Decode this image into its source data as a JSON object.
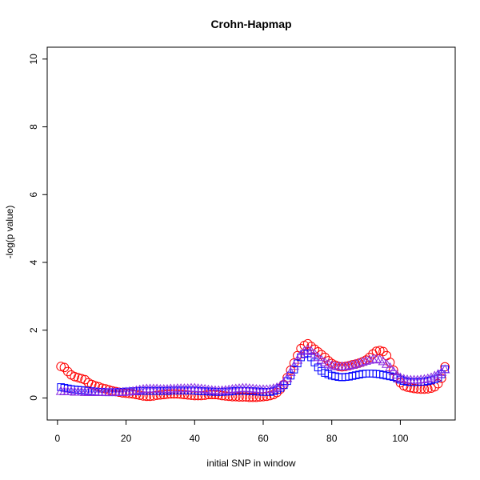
{
  "chart_data": {
    "type": "scatter",
    "title": "Crohn-Hapmap",
    "xlabel": "initial SNP in window",
    "ylabel": "-log(p value)",
    "xlim": [
      -3,
      116
    ],
    "ylim": [
      -0.65,
      10.35
    ],
    "x_ticks": [
      0,
      20,
      40,
      60,
      80,
      100
    ],
    "y_ticks": [
      0,
      2,
      4,
      6,
      8,
      10
    ],
    "grid": false,
    "x": [
      1,
      2,
      3,
      4,
      5,
      6,
      7,
      8,
      9,
      10,
      11,
      12,
      13,
      14,
      15,
      16,
      17,
      18,
      19,
      20,
      21,
      22,
      23,
      24,
      25,
      26,
      27,
      28,
      29,
      30,
      31,
      32,
      33,
      34,
      35,
      36,
      37,
      38,
      39,
      40,
      41,
      42,
      43,
      44,
      45,
      46,
      47,
      48,
      49,
      50,
      51,
      52,
      53,
      54,
      55,
      56,
      57,
      58,
      59,
      60,
      61,
      62,
      63,
      64,
      65,
      66,
      67,
      68,
      69,
      70,
      71,
      72,
      73,
      74,
      75,
      76,
      77,
      78,
      79,
      80,
      81,
      82,
      83,
      84,
      85,
      86,
      87,
      88,
      89,
      90,
      91,
      92,
      93,
      94,
      95,
      96,
      97,
      98,
      99,
      100,
      101,
      102,
      103,
      104,
      105,
      106,
      107,
      108,
      109,
      110,
      111,
      112,
      113
    ],
    "series": [
      {
        "marker": "circle",
        "color": "#ff0000",
        "values": [
          0.93,
          0.9,
          0.78,
          0.68,
          0.63,
          0.6,
          0.57,
          0.54,
          0.45,
          0.4,
          0.36,
          0.33,
          0.29,
          0.27,
          0.24,
          0.21,
          0.19,
          0.17,
          0.15,
          0.14,
          0.13,
          0.12,
          0.1,
          0.08,
          0.06,
          0.05,
          0.05,
          0.06,
          0.08,
          0.09,
          0.1,
          0.11,
          0.12,
          0.12,
          0.12,
          0.11,
          0.1,
          0.09,
          0.08,
          0.07,
          0.07,
          0.07,
          0.08,
          0.1,
          0.1,
          0.1,
          0.09,
          0.07,
          0.06,
          0.05,
          0.04,
          0.04,
          0.03,
          0.03,
          0.03,
          0.02,
          0.02,
          0.02,
          0.03,
          0.04,
          0.05,
          0.07,
          0.1,
          0.16,
          0.26,
          0.4,
          0.6,
          0.82,
          1.03,
          1.25,
          1.46,
          1.55,
          1.6,
          1.52,
          1.44,
          1.36,
          1.28,
          1.2,
          1.1,
          1.02,
          0.97,
          0.93,
          0.92,
          0.93,
          0.95,
          0.98,
          1.0,
          1.03,
          1.07,
          1.12,
          1.2,
          1.3,
          1.38,
          1.4,
          1.37,
          1.25,
          1.05,
          0.82,
          0.6,
          0.45,
          0.36,
          0.32,
          0.3,
          0.28,
          0.27,
          0.26,
          0.26,
          0.27,
          0.29,
          0.33,
          0.42,
          0.58,
          0.92
        ]
      },
      {
        "marker": "square",
        "color": "#0000ff",
        "values": [
          0.32,
          0.3,
          0.28,
          0.26,
          0.25,
          0.24,
          0.23,
          0.22,
          0.21,
          0.2,
          0.19,
          0.18,
          0.18,
          0.17,
          0.17,
          0.17,
          0.17,
          0.18,
          0.18,
          0.19,
          0.19,
          0.2,
          0.2,
          0.21,
          0.21,
          0.21,
          0.21,
          0.21,
          0.21,
          0.21,
          0.21,
          0.21,
          0.22,
          0.22,
          0.22,
          0.22,
          0.22,
          0.22,
          0.22,
          0.22,
          0.21,
          0.2,
          0.2,
          0.19,
          0.19,
          0.18,
          0.18,
          0.18,
          0.19,
          0.19,
          0.2,
          0.21,
          0.21,
          0.21,
          0.21,
          0.2,
          0.2,
          0.19,
          0.19,
          0.18,
          0.18,
          0.18,
          0.2,
          0.24,
          0.3,
          0.38,
          0.5,
          0.66,
          0.84,
          1.02,
          1.2,
          1.3,
          1.32,
          1.2,
          1.05,
          0.9,
          0.8,
          0.74,
          0.7,
          0.66,
          0.64,
          0.62,
          0.61,
          0.62,
          0.63,
          0.65,
          0.67,
          0.69,
          0.71,
          0.72,
          0.72,
          0.72,
          0.71,
          0.7,
          0.68,
          0.66,
          0.64,
          0.62,
          0.58,
          0.54,
          0.5,
          0.48,
          0.47,
          0.47,
          0.47,
          0.48,
          0.48,
          0.5,
          0.52,
          0.55,
          0.6,
          0.7,
          0.85
        ]
      },
      {
        "marker": "triangle",
        "color": "#8a2be2",
        "values": [
          0.2,
          0.19,
          0.19,
          0.19,
          0.18,
          0.18,
          0.18,
          0.17,
          0.17,
          0.17,
          0.17,
          0.17,
          0.17,
          0.17,
          0.17,
          0.17,
          0.17,
          0.17,
          0.17,
          0.18,
          0.19,
          0.2,
          0.22,
          0.24,
          0.26,
          0.27,
          0.27,
          0.27,
          0.27,
          0.26,
          0.26,
          0.26,
          0.27,
          0.27,
          0.28,
          0.28,
          0.28,
          0.28,
          0.29,
          0.29,
          0.28,
          0.27,
          0.26,
          0.24,
          0.23,
          0.22,
          0.22,
          0.22,
          0.23,
          0.24,
          0.26,
          0.27,
          0.28,
          0.29,
          0.29,
          0.28,
          0.27,
          0.26,
          0.25,
          0.25,
          0.25,
          0.26,
          0.28,
          0.31,
          0.36,
          0.45,
          0.58,
          0.76,
          0.94,
          1.12,
          1.28,
          1.38,
          1.42,
          1.38,
          1.3,
          1.2,
          1.12,
          1.05,
          1.0,
          0.96,
          0.94,
          0.93,
          0.93,
          0.93,
          0.95,
          0.97,
          1.0,
          1.03,
          1.06,
          1.09,
          1.12,
          1.14,
          1.15,
          1.13,
          1.08,
          1.0,
          0.9,
          0.78,
          0.68,
          0.6,
          0.56,
          0.54,
          0.53,
          0.53,
          0.53,
          0.54,
          0.55,
          0.57,
          0.6,
          0.65,
          0.7,
          0.76,
          0.84
        ]
      }
    ]
  }
}
